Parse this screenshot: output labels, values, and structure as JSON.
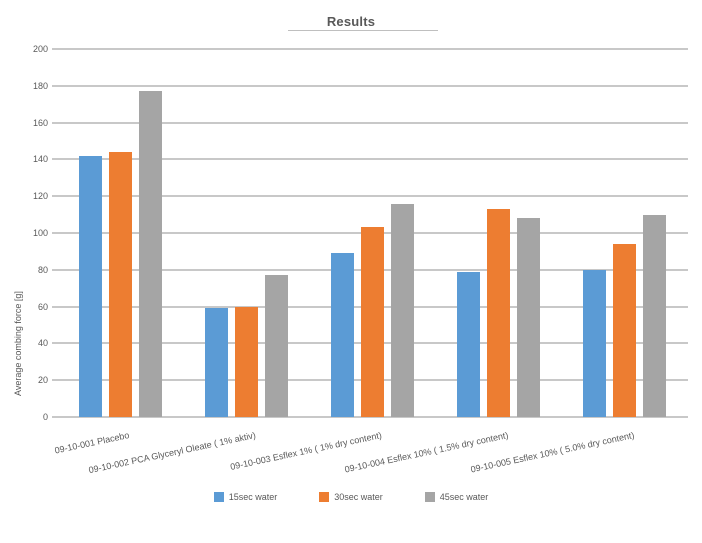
{
  "title": "Results",
  "chart_data": {
    "type": "bar",
    "title": "Results",
    "xlabel": "",
    "ylabel": "Average combing force [g]",
    "ylim": [
      0,
      200
    ],
    "ytick_step": 20,
    "grid": true,
    "legend_position": "bottom",
    "categories": [
      "09-10-001 Placebo",
      "09-10-002 PCA Glyceryl Oleate ( 1% aktiv)",
      "09-10-003 Esflex 1% ( 1% dry content)",
      "09-10-004 Esflex 10% ( 1.5% dry content)",
      "09-10-005 Esflex 10% ( 5.0% dry content)"
    ],
    "series": [
      {
        "name": "15sec water",
        "color": "#5B9BD5",
        "values": [
          142,
          59,
          89,
          79,
          80
        ]
      },
      {
        "name": "30sec water",
        "color": "#ED7D31",
        "values": [
          144,
          60,
          103,
          113,
          94
        ]
      },
      {
        "name": "45sec water",
        "color": "#A5A5A5",
        "values": [
          177,
          77,
          116,
          108,
          110
        ]
      }
    ]
  },
  "colors": {
    "text": "#595959",
    "gridline": "#C8C8C8",
    "title_underline": "#BFBFBF"
  }
}
